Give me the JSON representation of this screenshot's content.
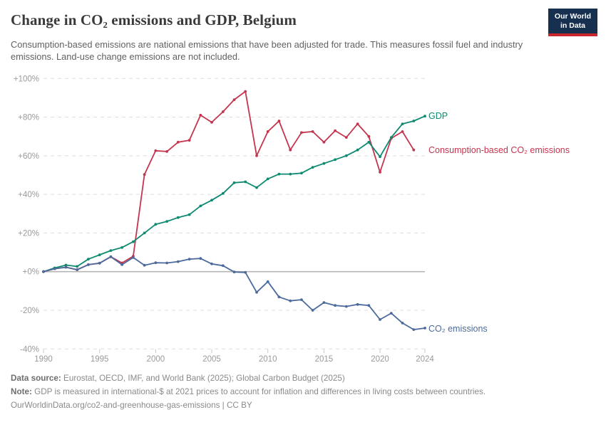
{
  "header": {
    "title": "Change in CO₂ emissions and GDP, Belgium",
    "subtitle": "Consumption-based emissions are national emissions that have been adjusted for trade. This measures fossil fuel and industry emissions. Land-use change emissions are not included.",
    "logo": {
      "line1": "Our World",
      "line2": "in Data"
    }
  },
  "chart_data": {
    "type": "line",
    "title": "Change in CO₂ emissions and GDP, Belgium",
    "xlabel": "",
    "ylabel": "",
    "xlim": [
      1990,
      2024
    ],
    "ylim": [
      -40,
      100
    ],
    "grid": "horizontal dashed gridlines, solid line at 0%",
    "legend_position": "right-of-line-ends",
    "x_ticks": [
      {
        "value": 1990,
        "label": "1990"
      },
      {
        "value": 1995,
        "label": "1995"
      },
      {
        "value": 2000,
        "label": "2000"
      },
      {
        "value": 2005,
        "label": "2005"
      },
      {
        "value": 2010,
        "label": "2010"
      },
      {
        "value": 2015,
        "label": "2015"
      },
      {
        "value": 2020,
        "label": "2020"
      },
      {
        "value": 2024,
        "label": "2024"
      }
    ],
    "y_ticks": [
      {
        "value": 100,
        "label": "+100%"
      },
      {
        "value": 80,
        "label": "+80%"
      },
      {
        "value": 60,
        "label": "+60%"
      },
      {
        "value": 40,
        "label": "+40%"
      },
      {
        "value": 20,
        "label": "+20%"
      },
      {
        "value": 0,
        "label": "+0%"
      },
      {
        "value": -20,
        "label": "-20%"
      },
      {
        "value": -40,
        "label": "-40%"
      }
    ],
    "series": [
      {
        "name": "Consumption-based CO₂ emissions",
        "color": "#c4354e",
        "x": [
          1990,
          1991,
          1992,
          1993,
          1994,
          1995,
          1996,
          1997,
          1998,
          1999,
          2000,
          2001,
          2002,
          2003,
          2004,
          2005,
          2006,
          2007,
          2008,
          2009,
          2010,
          2011,
          2012,
          2013,
          2014,
          2015,
          2016,
          2017,
          2018,
          2019,
          2020,
          2021,
          2022,
          2023
        ],
        "values": [
          0,
          1.5,
          2.3,
          1.0,
          3.6,
          4.4,
          7.7,
          4.5,
          8.0,
          50.3,
          62.6,
          62.2,
          67,
          68,
          81,
          77.3,
          82.8,
          89,
          93.3,
          60,
          72.5,
          78,
          63,
          72,
          72.5,
          67,
          73,
          69.5,
          76.5,
          70,
          51.5,
          69,
          72.5,
          63
        ]
      },
      {
        "name": "GDP",
        "color": "#0e8a70",
        "x": [
          1990,
          1991,
          1992,
          1993,
          1994,
          1995,
          1996,
          1997,
          1998,
          1999,
          2000,
          2001,
          2002,
          2003,
          2004,
          2005,
          2006,
          2007,
          2008,
          2009,
          2010,
          2011,
          2012,
          2013,
          2014,
          2015,
          2016,
          2017,
          2018,
          2019,
          2020,
          2021,
          2022,
          2023,
          2024
        ],
        "values": [
          0,
          1.9,
          3.4,
          2.7,
          6.5,
          8.7,
          10.9,
          12.5,
          15.5,
          20,
          24.5,
          26,
          28,
          29.5,
          34,
          37,
          40.5,
          46,
          46.5,
          43.5,
          48,
          50.5,
          50.5,
          51,
          54,
          56,
          58,
          60,
          63,
          67,
          59.5,
          69.5,
          76.5,
          78,
          80.5
        ]
      },
      {
        "name": "CO₂ emissions",
        "color": "#4c6a9c",
        "x": [
          1990,
          1991,
          1992,
          1993,
          1994,
          1995,
          1996,
          1997,
          1998,
          1999,
          2000,
          2001,
          2002,
          2003,
          2004,
          2005,
          2006,
          2007,
          2008,
          2009,
          2010,
          2011,
          2012,
          2013,
          2014,
          2015,
          2016,
          2017,
          2018,
          2019,
          2020,
          2021,
          2022,
          2023,
          2024
        ],
        "values": [
          0,
          1.5,
          2.3,
          1.0,
          3.6,
          4.4,
          7.7,
          3.6,
          7.3,
          3.3,
          4.6,
          4.5,
          5.2,
          6.5,
          6.8,
          4.0,
          3.1,
          -0.2,
          -0.4,
          -10.7,
          -5.2,
          -13.1,
          -15.1,
          -14.5,
          -20,
          -16,
          -17.5,
          -18,
          -17,
          -17.5,
          -24.8,
          -21.5,
          -26.6,
          -30,
          -29.2
        ]
      }
    ],
    "series_labels": {
      "gdp": "GDP",
      "consumption": "Consumption-based CO₂ emissions",
      "co2": "CO₂ emissions"
    }
  },
  "footer": {
    "data_source_label": "Data source:",
    "data_source": " Eurostat, OECD, IMF, and World Bank (2025); Global Carbon Budget (2025)",
    "note_label": "Note:",
    "note": " GDP is measured in international-$ at 2021 prices to account for inflation and differences in living costs between countries.",
    "url": "OurWorldinData.org/co2-and-greenhouse-gas-emissions",
    "license": " | CC BY"
  }
}
